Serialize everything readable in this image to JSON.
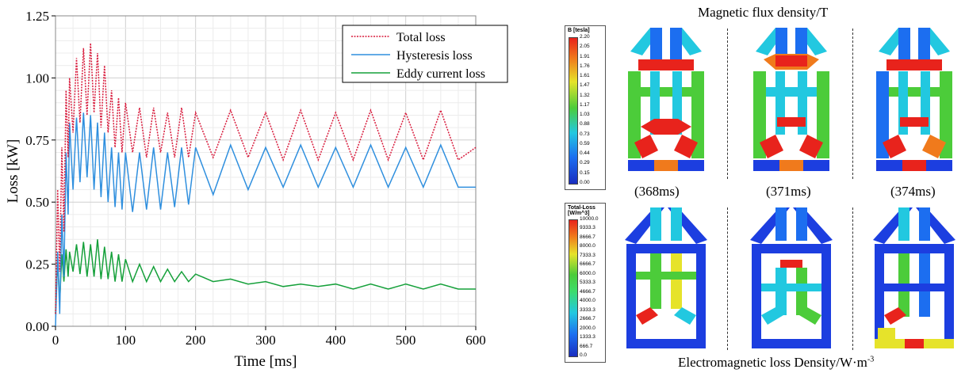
{
  "chart_data": {
    "type": "line",
    "xlabel": "Time [ms]",
    "ylabel": "Loss [kW]",
    "xlim": [
      0,
      600
    ],
    "ylim": [
      0,
      1.25
    ],
    "x_ticks": [
      "0",
      "100",
      "200",
      "300",
      "400",
      "500",
      "600"
    ],
    "y_ticks": [
      "0.00",
      "0.25",
      "0.50",
      "0.75",
      "1.00",
      "1.25"
    ],
    "grid": true,
    "legend_position": "top-right",
    "series": [
      {
        "name": "Total loss",
        "color": "#d81b3c",
        "style": "dotted",
        "x": [
          0,
          3,
          6,
          9,
          12,
          15,
          18,
          20,
          25,
          30,
          35,
          40,
          45,
          50,
          55,
          60,
          65,
          70,
          75,
          80,
          85,
          90,
          95,
          100,
          110,
          120,
          130,
          140,
          150,
          160,
          170,
          180,
          190,
          200,
          225,
          250,
          275,
          300,
          325,
          350,
          375,
          400,
          425,
          450,
          475,
          500,
          525,
          550,
          575,
          600
        ],
        "y": [
          0.05,
          0.55,
          0.22,
          0.72,
          0.38,
          0.95,
          0.68,
          1.0,
          0.78,
          1.08,
          0.82,
          1.12,
          0.85,
          1.14,
          0.86,
          1.1,
          0.8,
          1.05,
          0.78,
          0.95,
          0.72,
          0.92,
          0.7,
          0.9,
          0.7,
          0.88,
          0.68,
          0.88,
          0.7,
          0.86,
          0.68,
          0.88,
          0.68,
          0.86,
          0.68,
          0.87,
          0.68,
          0.86,
          0.67,
          0.87,
          0.67,
          0.86,
          0.67,
          0.87,
          0.67,
          0.86,
          0.67,
          0.87,
          0.67,
          0.72
        ]
      },
      {
        "name": "Hysteresis loss",
        "color": "#2f8fde",
        "style": "solid",
        "x": [
          0,
          3,
          6,
          9,
          12,
          15,
          18,
          20,
          25,
          30,
          35,
          40,
          45,
          50,
          55,
          60,
          65,
          70,
          75,
          80,
          85,
          90,
          95,
          100,
          110,
          120,
          130,
          140,
          150,
          160,
          170,
          180,
          190,
          200,
          225,
          250,
          275,
          300,
          325,
          350,
          375,
          400,
          425,
          450,
          475,
          500,
          525,
          550,
          575,
          600
        ],
        "y": [
          0.0,
          0.3,
          0.05,
          0.45,
          0.2,
          0.7,
          0.45,
          0.82,
          0.55,
          0.84,
          0.58,
          0.86,
          0.6,
          0.85,
          0.55,
          0.82,
          0.52,
          0.78,
          0.5,
          0.72,
          0.48,
          0.7,
          0.47,
          0.7,
          0.46,
          0.7,
          0.47,
          0.72,
          0.47,
          0.7,
          0.48,
          0.72,
          0.49,
          0.72,
          0.53,
          0.73,
          0.55,
          0.72,
          0.56,
          0.73,
          0.56,
          0.72,
          0.56,
          0.73,
          0.56,
          0.72,
          0.56,
          0.73,
          0.56,
          0.56
        ]
      },
      {
        "name": "Eddy current loss",
        "color": "#15a03a",
        "style": "solid",
        "x": [
          0,
          3,
          6,
          9,
          12,
          15,
          18,
          20,
          25,
          30,
          35,
          40,
          45,
          50,
          55,
          60,
          65,
          70,
          75,
          80,
          85,
          90,
          95,
          100,
          110,
          120,
          130,
          140,
          150,
          160,
          170,
          180,
          190,
          200,
          225,
          250,
          275,
          300,
          325,
          350,
          375,
          400,
          425,
          450,
          475,
          500,
          525,
          550,
          575,
          600
        ],
        "y": [
          0.05,
          0.26,
          0.1,
          0.29,
          0.18,
          0.31,
          0.2,
          0.3,
          0.22,
          0.33,
          0.21,
          0.34,
          0.2,
          0.33,
          0.2,
          0.35,
          0.19,
          0.32,
          0.19,
          0.3,
          0.18,
          0.29,
          0.18,
          0.27,
          0.18,
          0.25,
          0.18,
          0.24,
          0.18,
          0.23,
          0.18,
          0.22,
          0.18,
          0.21,
          0.18,
          0.19,
          0.17,
          0.18,
          0.16,
          0.17,
          0.16,
          0.17,
          0.15,
          0.17,
          0.15,
          0.17,
          0.15,
          0.17,
          0.15,
          0.15
        ]
      }
    ]
  },
  "flux_panel": {
    "title": "Magnetic flux density/T",
    "legend_title": "B [tesla]",
    "legend_values": [
      "2.20",
      "2.05",
      "1.91",
      "1.76",
      "1.61",
      "1.47",
      "1.32",
      "1.17",
      "1.03",
      "0.88",
      "0.73",
      "0.59",
      "0.44",
      "0.29",
      "0.15",
      "0.00"
    ],
    "time_labels": [
      "(368ms)",
      "(371ms)",
      "(374ms)"
    ]
  },
  "loss_panel": {
    "title": "Electromagnetic loss Density/W·m",
    "title_superscript": "-3",
    "legend_title": "Total-Loss",
    "legend_unit": "[W/m^3]",
    "legend_values": [
      "10000.0",
      "9333.3",
      "8666.7",
      "8000.0",
      "7333.3",
      "6666.7",
      "6000.0",
      "5333.3",
      "4666.7",
      "4000.0",
      "3333.3",
      "2666.7",
      "2000.0",
      "1333.3",
      "666.7",
      "0.0"
    ]
  },
  "colors": {
    "jet_red": "#e8231c",
    "jet_orange": "#f07a1c",
    "jet_yellow": "#e6e32a",
    "jet_green": "#4ccc3a",
    "jet_cyan": "#22c8e0",
    "jet_blue": "#1c3ee0",
    "jet_dark_blue": "#1a2ec0"
  }
}
